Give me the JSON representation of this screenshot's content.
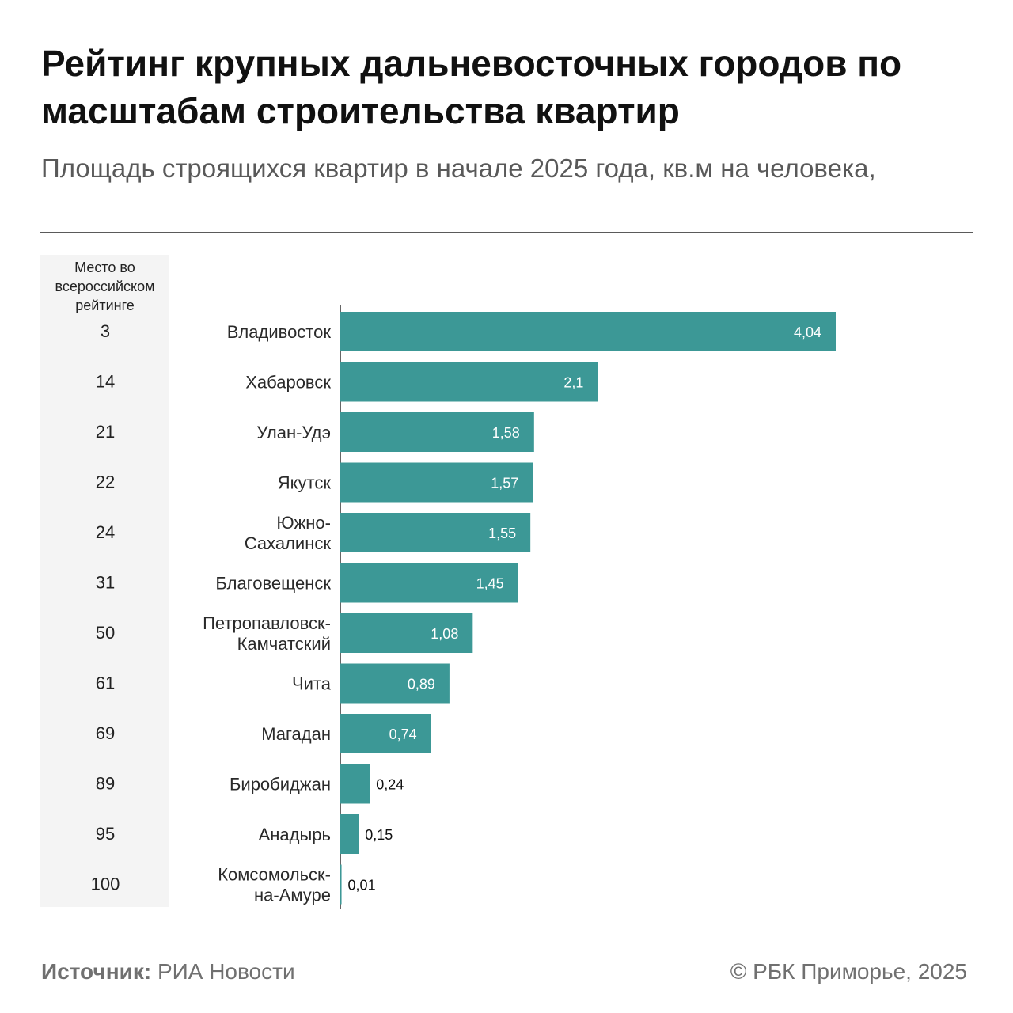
{
  "title": "Рейтинг крупных дальневосточных городов по масштабам строительства квартир",
  "subtitle": "Площадь строящихся квартир в начале 2025 года, кв.м на человека,",
  "rank_header": "Место во всероссийском рейтинге",
  "footer": {
    "source_label": "Источник:",
    "source_value": " РИА Новости",
    "copyright": "© РБК Приморье, 2025"
  },
  "colors": {
    "bar": "#3c9896",
    "label_inside": "#ffffff",
    "label_outside": "#111111",
    "rank_panel": "#f4f4f4"
  },
  "chart_data": {
    "type": "bar",
    "orientation": "horizontal",
    "categories": [
      [
        "Владивосток"
      ],
      [
        "Хабаровск"
      ],
      [
        "Улан-Удэ"
      ],
      [
        "Якутск"
      ],
      [
        "Южно-",
        "Сахалинск"
      ],
      [
        "Благовещенск"
      ],
      [
        "Петропавловск-",
        "Камчатский"
      ],
      [
        "Чита"
      ],
      [
        "Магадан"
      ],
      [
        "Биробиджан"
      ],
      [
        "Анадырь"
      ],
      [
        "Комсомольск-",
        "на-Амуре"
      ]
    ],
    "values": [
      4.04,
      2.1,
      1.58,
      1.57,
      1.55,
      1.45,
      1.08,
      0.89,
      0.74,
      0.24,
      0.15,
      0.01
    ],
    "value_labels": [
      "4,04",
      "2,1",
      "1,58",
      "1,57",
      "1,55",
      "1,45",
      "1,08",
      "0,89",
      "0,74",
      "0,24",
      "0,15",
      "0,01"
    ],
    "ranks": [
      "3",
      "14",
      "21",
      "22",
      "24",
      "31",
      "50",
      "61",
      "69",
      "89",
      "95",
      "100"
    ],
    "xlim": [
      0,
      4.04
    ]
  }
}
